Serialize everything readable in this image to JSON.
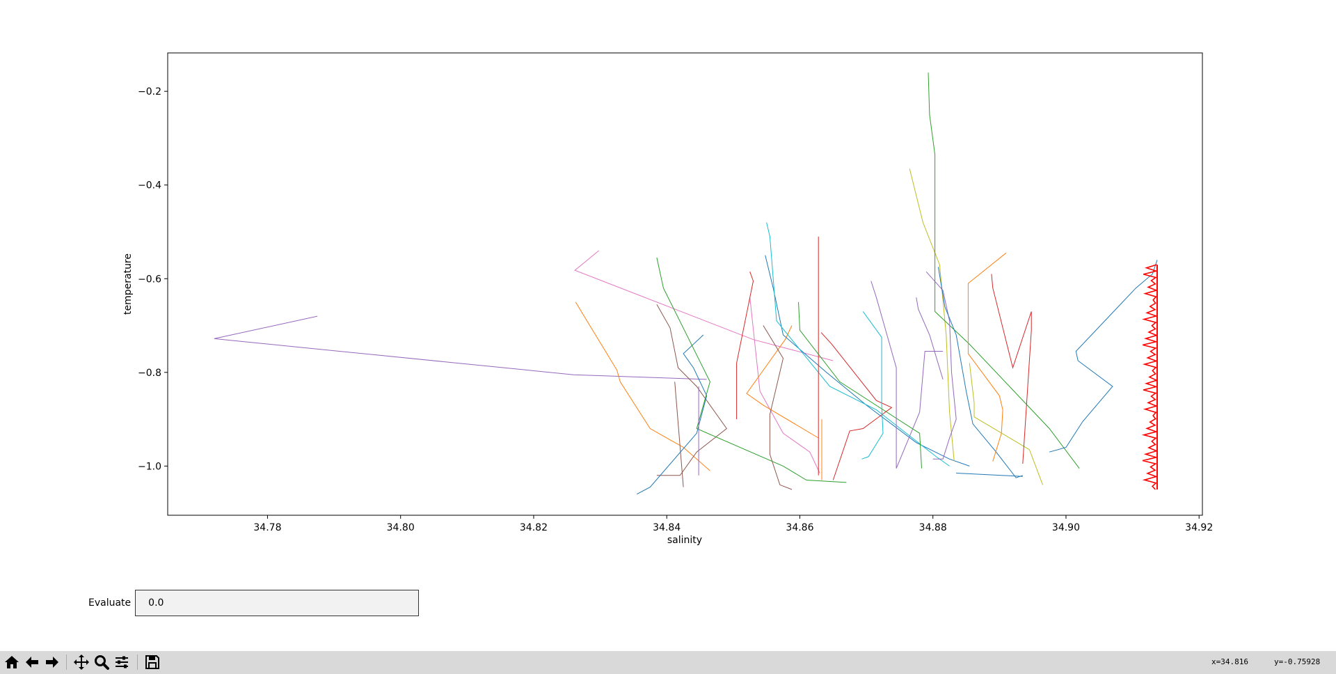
{
  "chart_data": {
    "type": "line",
    "xlabel": "salinity",
    "ylabel": "temperature",
    "xlim": [
      34.765,
      34.9205
    ],
    "ylim": [
      -1.105,
      -0.118
    ],
    "xticks": [
      "34.78",
      "34.80",
      "34.82",
      "34.84",
      "34.86",
      "34.88",
      "34.90",
      "34.92"
    ],
    "xtick_values": [
      34.78,
      34.8,
      34.82,
      34.84,
      34.86,
      34.88,
      34.9,
      34.92
    ],
    "yticks": [
      "−0.2",
      "−0.4",
      "−0.6",
      "−0.8",
      "−1.0"
    ],
    "ytick_values": [
      -0.2,
      -0.4,
      -0.6,
      -0.8,
      -1.0
    ],
    "grid": false,
    "legend": "none",
    "series": [
      {
        "color": "#9467bd",
        "points": [
          [
            34.7875,
            -0.68
          ],
          [
            34.772,
            -0.728
          ],
          [
            34.826,
            -0.805
          ],
          [
            34.846,
            -0.815
          ]
        ]
      },
      {
        "color": "#e377c2",
        "points": [
          [
            34.8298,
            -0.54
          ],
          [
            34.8262,
            -0.582
          ],
          [
            34.853,
            -0.73
          ],
          [
            34.865,
            -0.775
          ]
        ]
      },
      {
        "color": "#e377c2",
        "points": [
          [
            34.8525,
            -0.64
          ],
          [
            34.854,
            -0.84
          ],
          [
            34.8575,
            -0.93
          ],
          [
            34.8615,
            -0.97
          ],
          [
            34.863,
            -1.015
          ]
        ]
      },
      {
        "color": "#ff7f0e",
        "points": [
          [
            34.8263,
            -0.65
          ],
          [
            34.828,
            -0.69
          ],
          [
            34.8325,
            -0.795
          ],
          [
            34.833,
            -0.82
          ],
          [
            34.8375,
            -0.92
          ],
          [
            34.8425,
            -0.96
          ],
          [
            34.8465,
            -1.01
          ]
        ]
      },
      {
        "color": "#8c564b",
        "points": [
          [
            34.8385,
            -0.655
          ],
          [
            34.8405,
            -0.705
          ],
          [
            34.8417,
            -0.79
          ],
          [
            34.8445,
            -0.83
          ],
          [
            34.849,
            -0.92
          ],
          [
            34.8445,
            -0.97
          ],
          [
            34.842,
            -1.02
          ],
          [
            34.8385,
            -1.02
          ]
        ]
      },
      {
        "color": "#8c564b",
        "points": [
          [
            34.8412,
            -0.82
          ],
          [
            34.8425,
            -1.045
          ]
        ]
      },
      {
        "color": "#1f77b4",
        "points": [
          [
            34.8455,
            -0.72
          ],
          [
            34.8425,
            -0.76
          ],
          [
            34.844,
            -0.79
          ],
          [
            34.846,
            -0.85
          ],
          [
            34.8445,
            -0.93
          ],
          [
            34.8375,
            -1.045
          ],
          [
            34.8355,
            -1.06
          ]
        ]
      },
      {
        "color": "#2ca02c",
        "points": [
          [
            34.8385,
            -0.555
          ],
          [
            34.8395,
            -0.62
          ],
          [
            34.8465,
            -0.82
          ],
          [
            34.8445,
            -0.92
          ],
          [
            34.8575,
            -1.0
          ],
          [
            34.861,
            -1.03
          ],
          [
            34.867,
            -1.035
          ]
        ]
      },
      {
        "color": "#9467bd",
        "points": [
          [
            34.8448,
            -0.83
          ],
          [
            34.8448,
            -1.02
          ]
        ]
      },
      {
        "color": "#d62728",
        "points": [
          [
            34.8525,
            -0.585
          ],
          [
            34.853,
            -0.605
          ],
          [
            34.8525,
            -0.64
          ],
          [
            34.8505,
            -0.78
          ],
          [
            34.8505,
            -0.9
          ]
        ]
      },
      {
        "color": "#ff7f0e",
        "points": [
          [
            34.8588,
            -0.7
          ],
          [
            34.8578,
            -0.73
          ],
          [
            34.852,
            -0.845
          ],
          [
            34.8545,
            -0.87
          ],
          [
            34.8628,
            -0.94
          ]
        ]
      },
      {
        "color": "#8c564b",
        "points": [
          [
            34.8545,
            -0.7
          ],
          [
            34.8575,
            -0.77
          ],
          [
            34.8555,
            -0.89
          ],
          [
            34.8555,
            -0.975
          ],
          [
            34.857,
            -1.04
          ],
          [
            34.8588,
            -1.05
          ]
        ]
      },
      {
        "color": "#1f77b4",
        "points": [
          [
            34.8548,
            -0.55
          ],
          [
            34.856,
            -0.62
          ],
          [
            34.8575,
            -0.72
          ],
          [
            34.864,
            -0.8
          ],
          [
            34.87,
            -0.87
          ],
          [
            34.8775,
            -0.95
          ],
          [
            34.8825,
            -0.985
          ],
          [
            34.8855,
            -1.0
          ]
        ]
      },
      {
        "color": "#17becf",
        "points": [
          [
            34.855,
            -0.48
          ],
          [
            34.8555,
            -0.51
          ],
          [
            34.8565,
            -0.69
          ],
          [
            34.8645,
            -0.83
          ],
          [
            34.8715,
            -0.88
          ],
          [
            34.8805,
            -0.98
          ],
          [
            34.8825,
            -1.0
          ]
        ]
      },
      {
        "color": "#d62728",
        "points": [
          [
            34.8628,
            -0.51
          ],
          [
            34.8628,
            -1.02
          ]
        ]
      },
      {
        "color": "#2ca02c",
        "points": [
          [
            34.8598,
            -0.65
          ],
          [
            34.86,
            -0.71
          ],
          [
            34.866,
            -0.82
          ],
          [
            34.878,
            -0.93
          ],
          [
            34.8783,
            -1.005
          ]
        ]
      },
      {
        "color": "#ff7f0e",
        "points": [
          [
            34.8633,
            -0.9
          ],
          [
            34.8633,
            -1.03
          ]
        ]
      },
      {
        "color": "#d62728",
        "points": [
          [
            34.8632,
            -0.715
          ],
          [
            34.8648,
            -0.74
          ],
          [
            34.8715,
            -0.86
          ],
          [
            34.8738,
            -0.875
          ],
          [
            34.8695,
            -0.92
          ],
          [
            34.8675,
            -0.925
          ],
          [
            34.865,
            -1.03
          ]
        ]
      },
      {
        "color": "#17becf",
        "points": [
          [
            34.8695,
            -0.67
          ],
          [
            34.8723,
            -0.725
          ],
          [
            34.8723,
            -0.87
          ],
          [
            34.8725,
            -0.93
          ],
          [
            34.8703,
            -0.98
          ],
          [
            34.8693,
            -0.985
          ]
        ]
      },
      {
        "color": "#9467bd",
        "points": [
          [
            34.8707,
            -0.605
          ],
          [
            34.8715,
            -0.64
          ],
          [
            34.8745,
            -0.79
          ],
          [
            34.8745,
            -1.005
          ],
          [
            34.878,
            -0.885
          ],
          [
            34.8788,
            -0.755
          ],
          [
            34.8815,
            -0.755
          ]
        ]
      },
      {
        "color": "#9467bd",
        "points": [
          [
            34.8775,
            -0.64
          ],
          [
            34.8778,
            -0.665
          ],
          [
            34.8795,
            -0.72
          ],
          [
            34.8815,
            -0.815
          ]
        ]
      },
      {
        "color": "#bcbd22",
        "points": [
          [
            34.8765,
            -0.365
          ],
          [
            34.8785,
            -0.48
          ],
          [
            34.881,
            -0.57
          ],
          [
            34.882,
            -0.72
          ],
          [
            34.8825,
            -0.885
          ],
          [
            34.8832,
            -0.99
          ]
        ]
      },
      {
        "color": "#2ca02c",
        "points": [
          [
            34.8793,
            -0.16
          ],
          [
            34.8795,
            -0.25
          ],
          [
            34.8803,
            -0.335
          ],
          [
            34.8803,
            -0.67
          ],
          [
            34.8855,
            -0.74
          ],
          [
            34.8975,
            -0.92
          ],
          [
            34.902,
            -1.005
          ]
        ]
      },
      {
        "color": "#9467bd",
        "points": [
          [
            34.879,
            -0.585
          ],
          [
            34.8815,
            -0.625
          ],
          [
            34.8825,
            -0.69
          ],
          [
            34.8828,
            -0.8
          ],
          [
            34.8835,
            -0.9
          ],
          [
            34.8825,
            -0.94
          ],
          [
            34.8815,
            -0.985
          ],
          [
            34.88,
            -0.985
          ]
        ]
      },
      {
        "color": "#1f77b4",
        "points": [
          [
            34.8808,
            -0.575
          ],
          [
            34.8818,
            -0.66
          ],
          [
            34.8835,
            -0.72
          ],
          [
            34.885,
            -0.84
          ],
          [
            34.886,
            -0.91
          ],
          [
            34.8895,
            -0.97
          ],
          [
            34.8925,
            -1.025
          ],
          [
            34.8935,
            -1.02
          ]
        ]
      },
      {
        "color": "#1f77b4",
        "points": [
          [
            34.8835,
            -1.015
          ],
          [
            34.8935,
            -1.022
          ]
        ]
      },
      {
        "color": "#ff7f0e",
        "points": [
          [
            34.891,
            -0.545
          ],
          [
            34.8853,
            -0.61
          ],
          [
            34.8853,
            -0.76
          ],
          [
            34.89,
            -0.85
          ],
          [
            34.8905,
            -0.88
          ],
          [
            34.8903,
            -0.93
          ],
          [
            34.889,
            -0.99
          ]
        ]
      },
      {
        "color": "#bcbd22",
        "points": [
          [
            34.8855,
            -0.78
          ],
          [
            34.8862,
            -0.865
          ],
          [
            34.8862,
            -0.895
          ],
          [
            34.8945,
            -0.965
          ],
          [
            34.8965,
            -1.04
          ]
        ]
      },
      {
        "color": "#d62728",
        "points": [
          [
            34.8888,
            -0.59
          ],
          [
            34.889,
            -0.62
          ],
          [
            34.892,
            -0.79
          ],
          [
            34.8948,
            -0.67
          ],
          [
            34.8948,
            -0.71
          ],
          [
            34.8935,
            -0.995
          ]
        ]
      },
      {
        "color": "#1f77b4",
        "points": [
          [
            34.9137,
            -0.56
          ],
          [
            34.913,
            -0.59
          ],
          [
            34.9105,
            -0.62
          ],
          [
            34.9075,
            -0.665
          ],
          [
            34.9015,
            -0.755
          ],
          [
            34.9018,
            -0.775
          ],
          [
            34.907,
            -0.83
          ],
          [
            34.9025,
            -0.905
          ],
          [
            34.9,
            -0.96
          ],
          [
            34.8975,
            -0.97
          ]
        ]
      }
    ],
    "marked_profile": {
      "color": "#ff0000",
      "x_min": 34.9115,
      "x_max": 34.9137,
      "y_top": -0.57,
      "y_bottom": -1.05
    }
  },
  "widgets": {
    "evaluate_label": "Evaluate",
    "evaluate_value": "0.0"
  },
  "toolbar": {
    "buttons": [
      "home-icon",
      "back-icon",
      "forward-icon",
      "pan-icon",
      "zoom-icon",
      "configure-subplots-icon",
      "save-icon"
    ],
    "x_readout": "x=34.816",
    "y_readout": "y=-0.75928"
  }
}
